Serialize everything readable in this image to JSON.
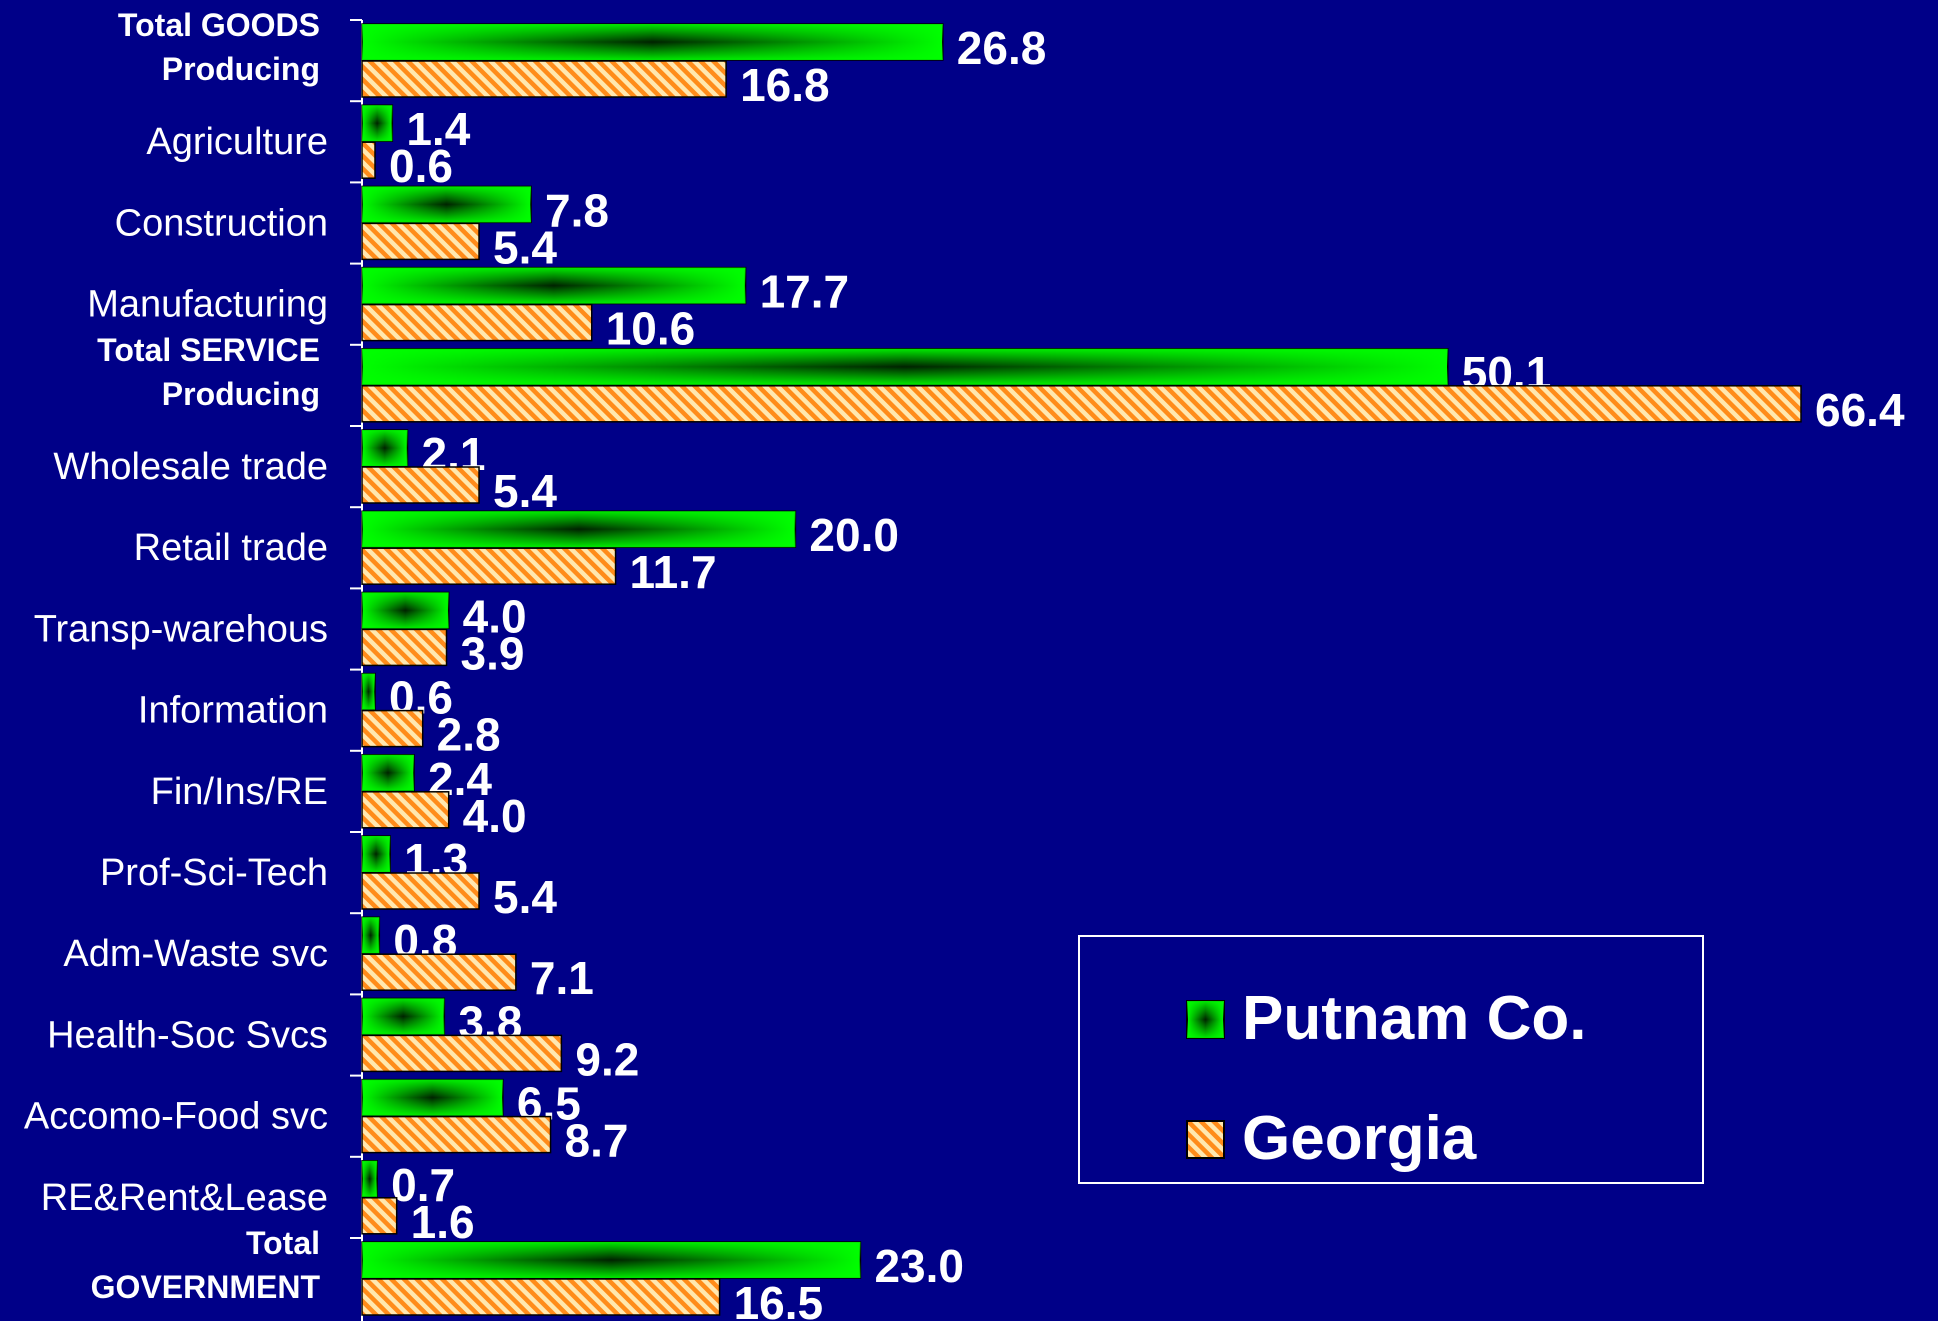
{
  "chart_data": {
    "type": "bar",
    "orientation": "horizontal",
    "categories": [
      [
        "Total GOODS",
        "Producing"
      ],
      "Agriculture",
      "Construction",
      "Manufacturing",
      [
        "Total SERVICE",
        "Producing"
      ],
      "Wholesale trade",
      "Retail trade",
      "Transp-warehous",
      "Information",
      "Fin/Ins/RE",
      "Prof-Sci-Tech",
      "Adm-Waste svc",
      "Health-Soc Svcs",
      "Accomo-Food svc",
      "RE&Rent&Lease",
      [
        "Total",
        "GOVERNMENT"
      ]
    ],
    "category_colors": [
      "#22ccaa",
      "#ffffff",
      "#ffffff",
      "#ffffff",
      "#ff9944",
      "#ffffff",
      "#ffffff",
      "#ffffff",
      "#ffffff",
      "#ffffff",
      "#ffffff",
      "#ffffff",
      "#ffffff",
      "#ffffff",
      "#ffffff",
      "#22ccff"
    ],
    "series": [
      {
        "name": "Putnam Co.",
        "color": "#00ff00",
        "values": [
          26.8,
          1.4,
          7.8,
          17.7,
          50.1,
          2.1,
          20.0,
          4.0,
          0.6,
          2.4,
          1.3,
          0.8,
          3.8,
          6.5,
          0.7,
          23.0
        ],
        "value_labels": [
          "26.8",
          "1.4",
          "7.8",
          "17.7",
          "50.1",
          "2.1",
          "20.0",
          "4.0",
          "0.6",
          "2.4",
          "1.3",
          "0.8",
          "3.8",
          "6.5",
          "0.7",
          "23.0"
        ]
      },
      {
        "name": "Georgia",
        "color": "#ff8c1a",
        "values": [
          16.8,
          0.6,
          5.4,
          10.6,
          66.4,
          5.4,
          11.7,
          3.9,
          2.8,
          4.0,
          5.4,
          7.1,
          9.2,
          8.7,
          1.6,
          16.5
        ],
        "value_labels": [
          "16.8",
          "0.6",
          "5.4",
          "10.6",
          "66.4",
          "5.4",
          "11.7",
          "3.9",
          "2.8",
          "4.0",
          "5.4",
          "7.1",
          "9.2",
          "8.7",
          "1.6",
          "16.5"
        ]
      }
    ],
    "legend": "bottom-right"
  }
}
